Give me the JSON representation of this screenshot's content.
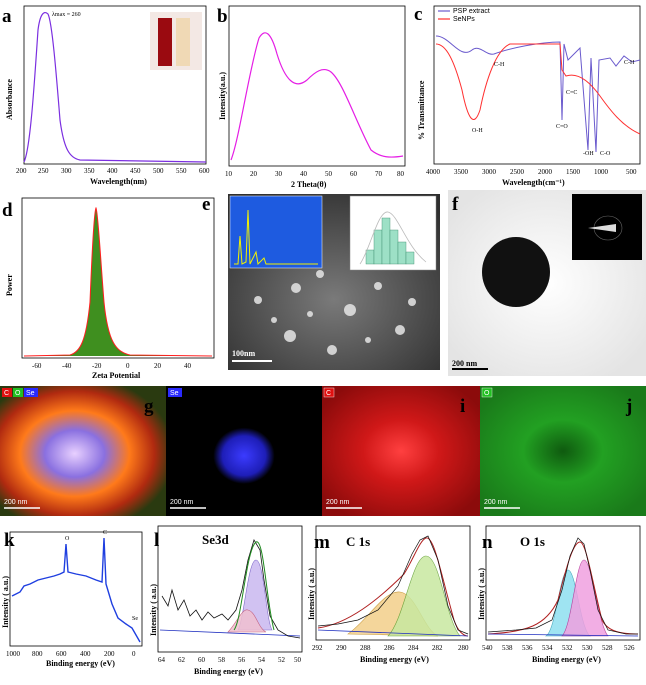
{
  "panels": {
    "a": {
      "letter": "a",
      "annotation": "λmax = 260",
      "xlabel": "Wavelength(nm)",
      "ylabel": "Absorbance",
      "xticks": [
        "200",
        "250",
        "300",
        "350",
        "400",
        "450",
        "500",
        "550",
        "600"
      ]
    },
    "b": {
      "letter": "b",
      "xlabel": "2 Theta(θ)",
      "ylabel": "Intensity(a.u.)",
      "xticks": [
        "10",
        "20",
        "30",
        "40",
        "50",
        "60",
        "70",
        "80"
      ]
    },
    "c": {
      "letter": "c",
      "legend": [
        "PSP extract",
        "SeNPs"
      ],
      "xlabel": "Wavelength(cm⁻¹)",
      "ylabel": "% Transmittance",
      "xticks": [
        "4000",
        "3500",
        "3000",
        "2500",
        "2000",
        "1500",
        "1000",
        "500"
      ],
      "peak_labels": [
        "O-H",
        "C-H",
        "C=O",
        "C=C",
        "-OH",
        "C-O",
        "C-H"
      ]
    },
    "d": {
      "letter": "d",
      "xlabel": "Zeta Potential",
      "ylabel": "Power",
      "xticks": [
        "-60",
        "-40",
        "-20",
        "0",
        "20",
        "40"
      ]
    },
    "e": {
      "letter": "e",
      "scale": "100nm"
    },
    "f": {
      "letter": "f",
      "scale": "200 nm"
    },
    "g": {
      "letter": "g",
      "channels": [
        "C",
        "O",
        "Se"
      ],
      "scale": "200 nm"
    },
    "h": {
      "letter": "h",
      "channel": "Se",
      "scale": "200 nm"
    },
    "i": {
      "letter": "i",
      "channel": "C",
      "scale": "200 nm"
    },
    "j": {
      "letter": "j",
      "channel": "O",
      "scale": "200 nm"
    },
    "k": {
      "letter": "k",
      "xlabel": "Binding energy (eV)",
      "ylabel": "Intensity ( a.u.)",
      "xticks": [
        "1000",
        "800",
        "600",
        "400",
        "200",
        "0"
      ],
      "peak_labels": [
        "O",
        "C",
        "Se"
      ]
    },
    "l": {
      "letter": "l",
      "title": "Se3d",
      "xlabel": "Binding energy (eV)",
      "ylabel": "Intensity ( a.u.)",
      "xticks": [
        "64",
        "62",
        "60",
        "58",
        "56",
        "54",
        "52",
        "50"
      ]
    },
    "m": {
      "letter": "m",
      "title": "C 1s",
      "xlabel": "Binding energy (eV)",
      "ylabel": "Intensity ( a.u.)",
      "xticks": [
        "292",
        "290",
        "288",
        "286",
        "284",
        "282",
        "280"
      ]
    },
    "n": {
      "letter": "n",
      "title": "O 1s",
      "xlabel": "Binding energy (eV)",
      "ylabel": "Intensity ( a.u.)",
      "xticks": [
        "540",
        "538",
        "536",
        "534",
        "532",
        "530",
        "528",
        "526"
      ]
    }
  },
  "colors": {
    "uv": "#7b2fe0",
    "xrd": "#e51ee5",
    "ftir_extract": "#6a5acd",
    "ftir_senps": "#ff3030",
    "zeta_fill": "#3f8f1f",
    "zeta_line": "#ff2020",
    "survey": "#1f3fe0",
    "se_map": "#2a2aff",
    "c_map": "#e01010",
    "o_map": "#22c022"
  },
  "chart_data": [
    {
      "type": "line",
      "panel": "a",
      "x": [
        200,
        220,
        240,
        250,
        255,
        260,
        265,
        270,
        280,
        290,
        300,
        320,
        350,
        400,
        450,
        500,
        550,
        600
      ],
      "series": [
        {
          "values": [
            0.02,
            0.15,
            0.7,
            0.93,
            0.98,
            1.0,
            0.97,
            0.88,
            0.55,
            0.2,
            0.07,
            0.04,
            0.03,
            0.025,
            0.02,
            0.02,
            0.02,
            0.02
          ]
        }
      ],
      "xlabel": "Wavelength(nm)",
      "ylabel": "Absorbance",
      "xlim": [
        200,
        600
      ],
      "annotations": [
        "λmax = 260"
      ]
    },
    {
      "type": "line",
      "panel": "b",
      "x": [
        10,
        15,
        20,
        25,
        28,
        30,
        35,
        40,
        45,
        50,
        52,
        55,
        60,
        65,
        70,
        75,
        80
      ],
      "series": [
        {
          "values": [
            0.05,
            0.3,
            0.65,
            0.97,
            1.0,
            0.95,
            0.62,
            0.45,
            0.55,
            0.69,
            0.7,
            0.66,
            0.45,
            0.2,
            0.06,
            0.03,
            0.04
          ]
        }
      ],
      "xlabel": "2 Theta(θ)",
      "ylabel": "Intensity(a.u.)",
      "xlim": [
        10,
        80
      ]
    },
    {
      "type": "line",
      "panel": "c",
      "x": [
        4000,
        3700,
        3500,
        3400,
        3300,
        3200,
        3000,
        2800,
        2500,
        2000,
        1800,
        1730,
        1650,
        1600,
        1500,
        1400,
        1200,
        1100,
        1050,
        1000,
        800,
        700,
        600,
        500
      ],
      "series": [
        {
          "name": "PSP extract",
          "values": [
            0.96,
            0.95,
            0.85,
            0.78,
            0.8,
            0.82,
            0.86,
            0.91,
            0.93,
            0.93,
            0.92,
            0.35,
            0.85,
            0.88,
            0.9,
            0.87,
            0.1,
            0.8,
            0.15,
            0.82,
            0.86,
            0.8,
            0.84,
            0.82
          ]
        },
        {
          "name": "SeNPs",
          "values": [
            0.93,
            0.85,
            0.4,
            0.22,
            0.3,
            0.55,
            0.82,
            0.92,
            0.94,
            0.94,
            0.93,
            0.7,
            0.78,
            0.76,
            0.82,
            0.8,
            0.7,
            0.62,
            0.55,
            0.48,
            0.35,
            0.3,
            0.28,
            0.25
          ]
        }
      ],
      "xlabel": "Wavelength(cm⁻¹)",
      "ylabel": "% Transmittance",
      "xlim": [
        4000,
        500
      ],
      "legend": "top-left"
    },
    {
      "type": "area",
      "panel": "d",
      "x": [
        -70,
        -50,
        -40,
        -35,
        -32,
        -30,
        -28,
        -26,
        -24,
        -22,
        -20,
        -15,
        -10,
        0,
        20,
        40,
        50
      ],
      "series": [
        {
          "values": [
            0,
            0.01,
            0.04,
            0.12,
            0.35,
            0.75,
            1.0,
            0.78,
            0.4,
            0.18,
            0.1,
            0.04,
            0.02,
            0.01,
            0.005,
            0.0,
            0.0
          ]
        }
      ],
      "xlabel": "Zeta Potential",
      "ylabel": "Power",
      "xlim": [
        -70,
        50
      ]
    },
    {
      "type": "line",
      "panel": "k",
      "x": [
        1000,
        900,
        800,
        700,
        600,
        540,
        531,
        520,
        450,
        400,
        300,
        285,
        280,
        200,
        100,
        55,
        0
      ],
      "series": [
        {
          "values": [
            0.4,
            0.48,
            0.55,
            0.58,
            0.6,
            0.63,
            0.95,
            0.58,
            0.55,
            0.54,
            0.5,
            1.0,
            0.45,
            0.2,
            0.08,
            0.07,
            0.02
          ]
        }
      ],
      "xlabel": "Binding energy (eV)",
      "ylabel": "Intensity ( a.u.)",
      "xlim": [
        1000,
        0
      ]
    },
    {
      "type": "line",
      "panel": "l",
      "x": [
        64,
        62,
        60,
        58,
        57,
        56,
        55,
        54.5,
        54,
        53,
        52,
        51,
        50
      ],
      "series": [
        {
          "values": [
            0.3,
            0.35,
            0.4,
            0.38,
            0.4,
            0.42,
            0.7,
            0.95,
            0.9,
            0.5,
            0.2,
            0.12,
            0.1
          ]
        }
      ],
      "xlabel": "Binding energy (eV)",
      "ylabel": "Intensity ( a.u.)",
      "xlim": [
        64,
        50
      ],
      "title": "Se3d"
    },
    {
      "type": "line",
      "panel": "m",
      "x": [
        292,
        290,
        288,
        286,
        285,
        284,
        283.5,
        283,
        282,
        281,
        280
      ],
      "series": [
        {
          "values": [
            0.05,
            0.08,
            0.15,
            0.45,
            0.65,
            0.95,
            1.0,
            0.85,
            0.4,
            0.12,
            0.05
          ]
        }
      ],
      "xlabel": "Binding energy (eV)",
      "ylabel": "Intensity ( a.u.)",
      "xlim": [
        292,
        280
      ],
      "title": "C 1s"
    },
    {
      "type": "line",
      "panel": "n",
      "x": [
        540,
        538,
        536,
        534,
        533,
        532,
        531,
        530.5,
        530,
        529,
        528,
        526
      ],
      "series": [
        {
          "values": [
            0.05,
            0.06,
            0.08,
            0.18,
            0.45,
            0.8,
            0.95,
            1.0,
            0.8,
            0.3,
            0.1,
            0.05
          ]
        }
      ],
      "xlabel": "Binding energy (eV)",
      "ylabel": "Intensity ( a.u.)",
      "xlim": [
        540,
        526
      ],
      "title": "O 1s"
    }
  ]
}
